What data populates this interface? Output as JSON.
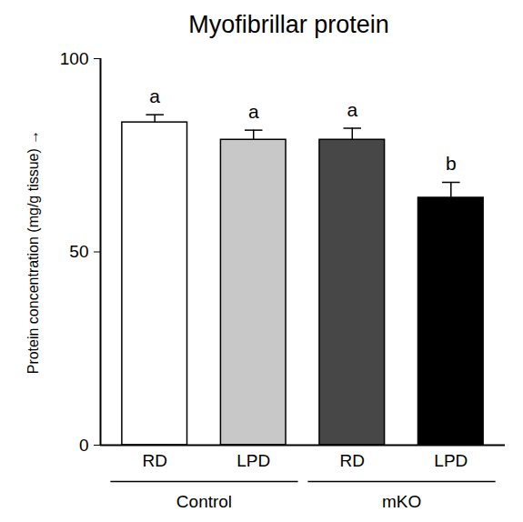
{
  "chart_data": {
    "type": "bar",
    "title": "Myofibrillar protein",
    "ylabel": "Protein concentration (mg/g tissue)",
    "categories": [
      "RD",
      "LPD",
      "RD",
      "LPD"
    ],
    "groups": [
      "Control",
      "Control",
      "mKO",
      "mKO"
    ],
    "values": [
      83.5,
      79,
      79,
      64
    ],
    "errors": [
      2,
      2.5,
      3,
      4
    ],
    "annotations": [
      "a",
      "a",
      "a",
      "b"
    ],
    "colors": [
      "#ffffff",
      "#c8c8c8",
      "#474747",
      "#000000"
    ],
    "ylim": [
      0,
      100
    ],
    "yticks": [
      0,
      50,
      100
    ],
    "grid": false
  }
}
